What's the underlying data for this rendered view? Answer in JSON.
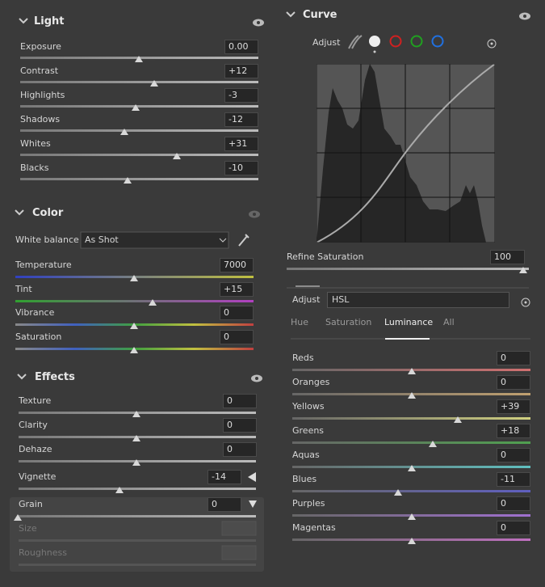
{
  "light": {
    "title": "Light",
    "sliders": [
      {
        "label": "Exposure",
        "value": "0.00"
      },
      {
        "label": "Contrast",
        "value": "+12"
      },
      {
        "label": "Highlights",
        "value": "-3"
      },
      {
        "label": "Shadows",
        "value": "-12"
      },
      {
        "label": "Whites",
        "value": "+31"
      },
      {
        "label": "Blacks",
        "value": "-10"
      }
    ]
  },
  "color": {
    "title": "Color",
    "white_balance": {
      "label": "White balance",
      "value": "As Shot"
    },
    "sliders": [
      {
        "label": "Temperature",
        "value": "7000"
      },
      {
        "label": "Tint",
        "value": "+15"
      },
      {
        "label": "Vibrance",
        "value": "0"
      },
      {
        "label": "Saturation",
        "value": "0"
      }
    ]
  },
  "effects": {
    "title": "Effects",
    "sliders": [
      {
        "label": "Texture",
        "value": "0"
      },
      {
        "label": "Clarity",
        "value": "0"
      },
      {
        "label": "Dehaze",
        "value": "0"
      },
      {
        "label": "Vignette",
        "value": "-14"
      },
      {
        "label": "Grain",
        "value": "0"
      },
      {
        "label": "Size"
      },
      {
        "label": "Roughness"
      }
    ]
  },
  "curve": {
    "title": "Curve",
    "adjust_label": "Adjust",
    "refine_saturation": {
      "label": "Refine Saturation",
      "value": "100"
    }
  },
  "hsl": {
    "adjust_label": "Adjust",
    "mode": "HSL",
    "tabs": [
      "Hue",
      "Saturation",
      "Luminance",
      "All"
    ],
    "sliders": [
      {
        "label": "Reds",
        "value": "0"
      },
      {
        "label": "Oranges",
        "value": "0"
      },
      {
        "label": "Yellows",
        "value": "+39"
      },
      {
        "label": "Greens",
        "value": "+18"
      },
      {
        "label": "Aquas",
        "value": "0"
      },
      {
        "label": "Blues",
        "value": "-11"
      },
      {
        "label": "Purples",
        "value": "0"
      },
      {
        "label": "Magentas",
        "value": "0"
      }
    ]
  }
}
